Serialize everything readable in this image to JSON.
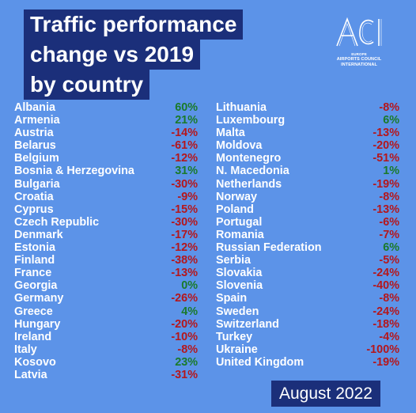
{
  "title": {
    "line1": "Traffic performance",
    "line2": "change vs 2019",
    "line3": "by country"
  },
  "logo": {
    "mark": "ACI",
    "region": "EUROPE",
    "line1": "AIRPORTS COUNCIL",
    "line2": "INTERNATIONAL"
  },
  "colors": {
    "background": "#5c93e8",
    "title_box": "#1b2f7a",
    "positive": "#1a7a2a",
    "negative": "#b5161b"
  },
  "left_column": [
    {
      "country": "Albania",
      "change": "60%"
    },
    {
      "country": "Armenia",
      "change": "21%"
    },
    {
      "country": "Austria",
      "change": "-14%"
    },
    {
      "country": "Belarus",
      "change": "-61%"
    },
    {
      "country": "Belgium",
      "change": "-12%"
    },
    {
      "country": "Bosnia & Herzegovina",
      "change": "31%"
    },
    {
      "country": "Bulgaria",
      "change": "-30%"
    },
    {
      "country": "Croatia",
      "change": "-9%"
    },
    {
      "country": "Cyprus",
      "change": "-15%"
    },
    {
      "country": "Czech Republic",
      "change": "-30%"
    },
    {
      "country": "Denmark",
      "change": "-17%"
    },
    {
      "country": "Estonia",
      "change": "-12%"
    },
    {
      "country": "Finland",
      "change": "-38%"
    },
    {
      "country": "France",
      "change": "-13%"
    },
    {
      "country": "Georgia",
      "change": "0%"
    },
    {
      "country": "Germany",
      "change": "-26%"
    },
    {
      "country": "Greece",
      "change": "4%"
    },
    {
      "country": "Hungary",
      "change": "-20%"
    },
    {
      "country": "Ireland",
      "change": "-10%"
    },
    {
      "country": "Italy",
      "change": "-8%"
    },
    {
      "country": "Kosovo",
      "change": "23%"
    },
    {
      "country": "Latvia",
      "change": "-31%"
    }
  ],
  "right_column": [
    {
      "country": "Lithuania",
      "change": "-8%"
    },
    {
      "country": "Luxembourg",
      "change": "6%"
    },
    {
      "country": "Malta",
      "change": "-13%"
    },
    {
      "country": "Moldova",
      "change": "-20%"
    },
    {
      "country": "Montenegro",
      "change": "-51%"
    },
    {
      "country": "N. Macedonia",
      "change": "1%"
    },
    {
      "country": "Netherlands",
      "change": "-19%"
    },
    {
      "country": "Norway",
      "change": "-8%"
    },
    {
      "country": "Poland",
      "change": "-13%"
    },
    {
      "country": "Portugal",
      "change": "-6%"
    },
    {
      "country": "Romania",
      "change": "-7%"
    },
    {
      "country": "Russian Federation",
      "change": "6%"
    },
    {
      "country": "Serbia",
      "change": "-5%"
    },
    {
      "country": "Slovakia",
      "change": "-24%"
    },
    {
      "country": "Slovenia",
      "change": "-40%"
    },
    {
      "country": "Spain",
      "change": "-8%"
    },
    {
      "country": "Sweden",
      "change": "-24%"
    },
    {
      "country": "Switzerland",
      "change": "-18%"
    },
    {
      "country": "Turkey",
      "change": "-4%"
    },
    {
      "country": "Ukraine",
      "change": "-100%"
    },
    {
      "country": "United Kingdom",
      "change": "-19%"
    }
  ],
  "footer": {
    "date": "August 2022"
  }
}
